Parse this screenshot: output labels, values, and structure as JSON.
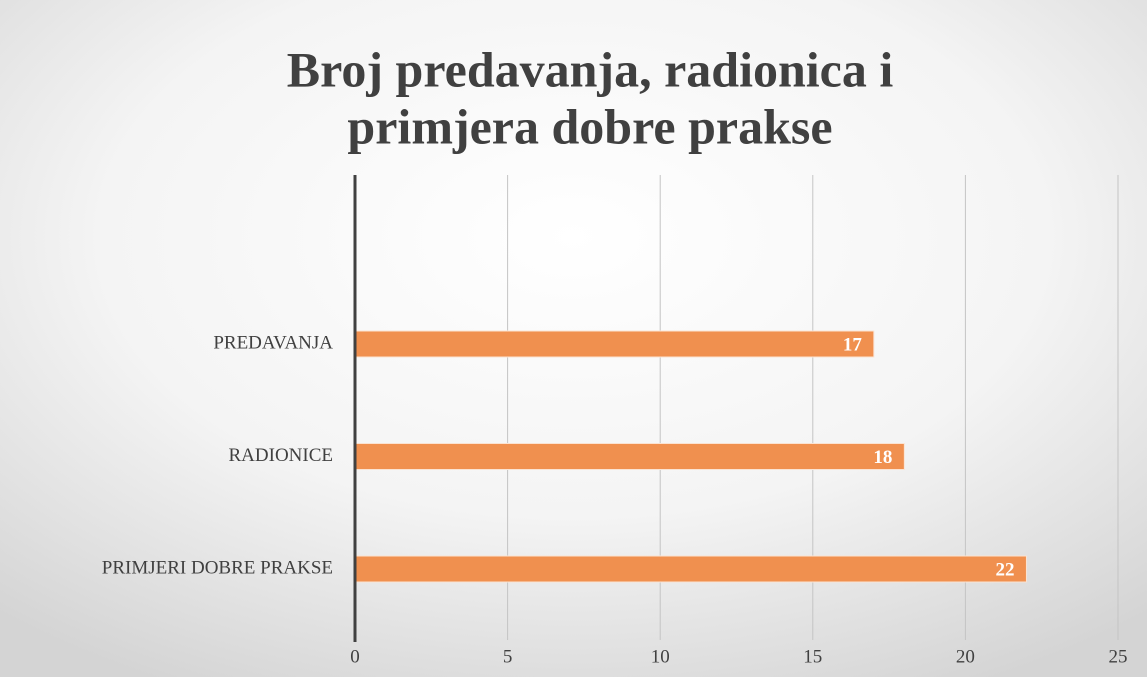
{
  "chart_data": {
    "type": "barh",
    "title": [
      "Broj predavanja, radionica i",
      "primjera dobre prakse"
    ],
    "categories": [
      "PREDAVANJA",
      "RADIONICE",
      "PRIMJERI DOBRE PRAKSE"
    ],
    "values": [
      17,
      18,
      22
    ],
    "color": "#f0904f",
    "xlim": [
      0,
      25
    ],
    "xticks": [
      0,
      5,
      10,
      15,
      20,
      25
    ],
    "grid": true
  }
}
